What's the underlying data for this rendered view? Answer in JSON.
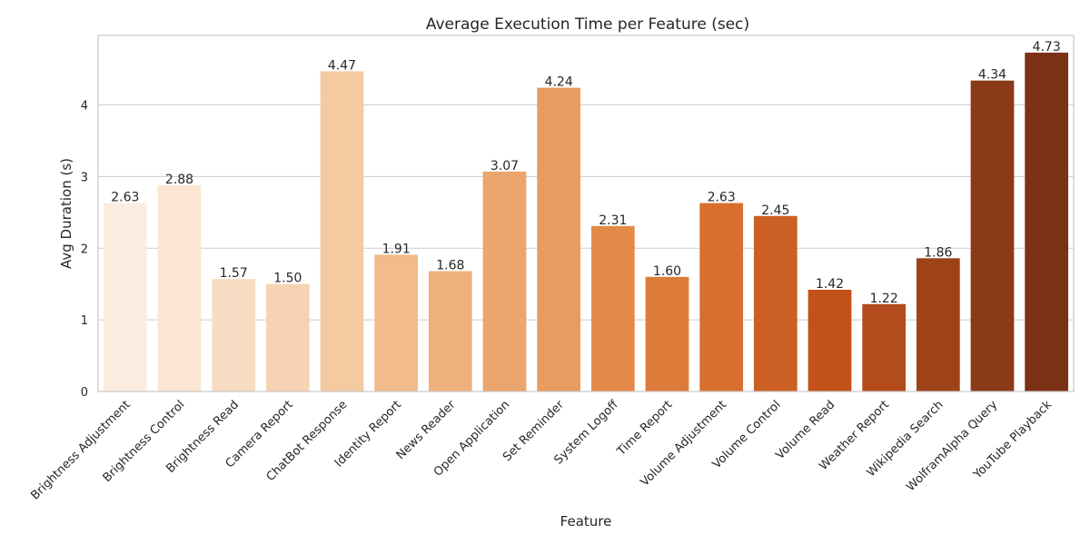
{
  "chart_data": {
    "type": "bar",
    "title": "Average Execution Time per Feature (sec)",
    "xlabel": "Feature",
    "ylabel": "Avg Duration (s)",
    "ylim": [
      0,
      4.97
    ],
    "yticks": [
      0,
      1,
      2,
      3,
      4
    ],
    "grid": "y-major",
    "categories": [
      "Brightness Adjustment",
      "Brightness Control",
      "Brightness Read",
      "Camera Report",
      "ChatBot Response",
      "Identity Report",
      "News Reader",
      "Open Application",
      "Set Reminder",
      "System Logoff",
      "Time Report",
      "Volume Adjustment",
      "Volume Control",
      "Volume Read",
      "Weather Report",
      "Wikipedia Search",
      "WolframAlpha Query",
      "YouTube Playback"
    ],
    "values": [
      2.63,
      2.88,
      1.57,
      1.5,
      4.47,
      1.91,
      1.68,
      3.07,
      4.24,
      2.31,
      1.6,
      2.63,
      2.45,
      1.42,
      1.22,
      1.86,
      4.34,
      4.73
    ],
    "value_labels": [
      "2.63",
      "2.88",
      "1.57",
      "1.50",
      "4.47",
      "1.91",
      "1.68",
      "3.07",
      "4.24",
      "2.31",
      "1.60",
      "2.63",
      "2.45",
      "1.42",
      "1.22",
      "1.86",
      "4.34",
      "4.73"
    ],
    "colors": [
      "#fcede0",
      "#fae6d3",
      "#f8dcc3",
      "#f6d3b3",
      "#f4cba1",
      "#f1bc8a",
      "#eeb07c",
      "#eaa66e",
      "#e89c60",
      "#e48a48",
      "#df7b3a",
      "#d96f2f",
      "#cc6024",
      "#c3521a",
      "#b34b1d",
      "#9e4318",
      "#8a3a16",
      "#7b3114"
    ]
  }
}
